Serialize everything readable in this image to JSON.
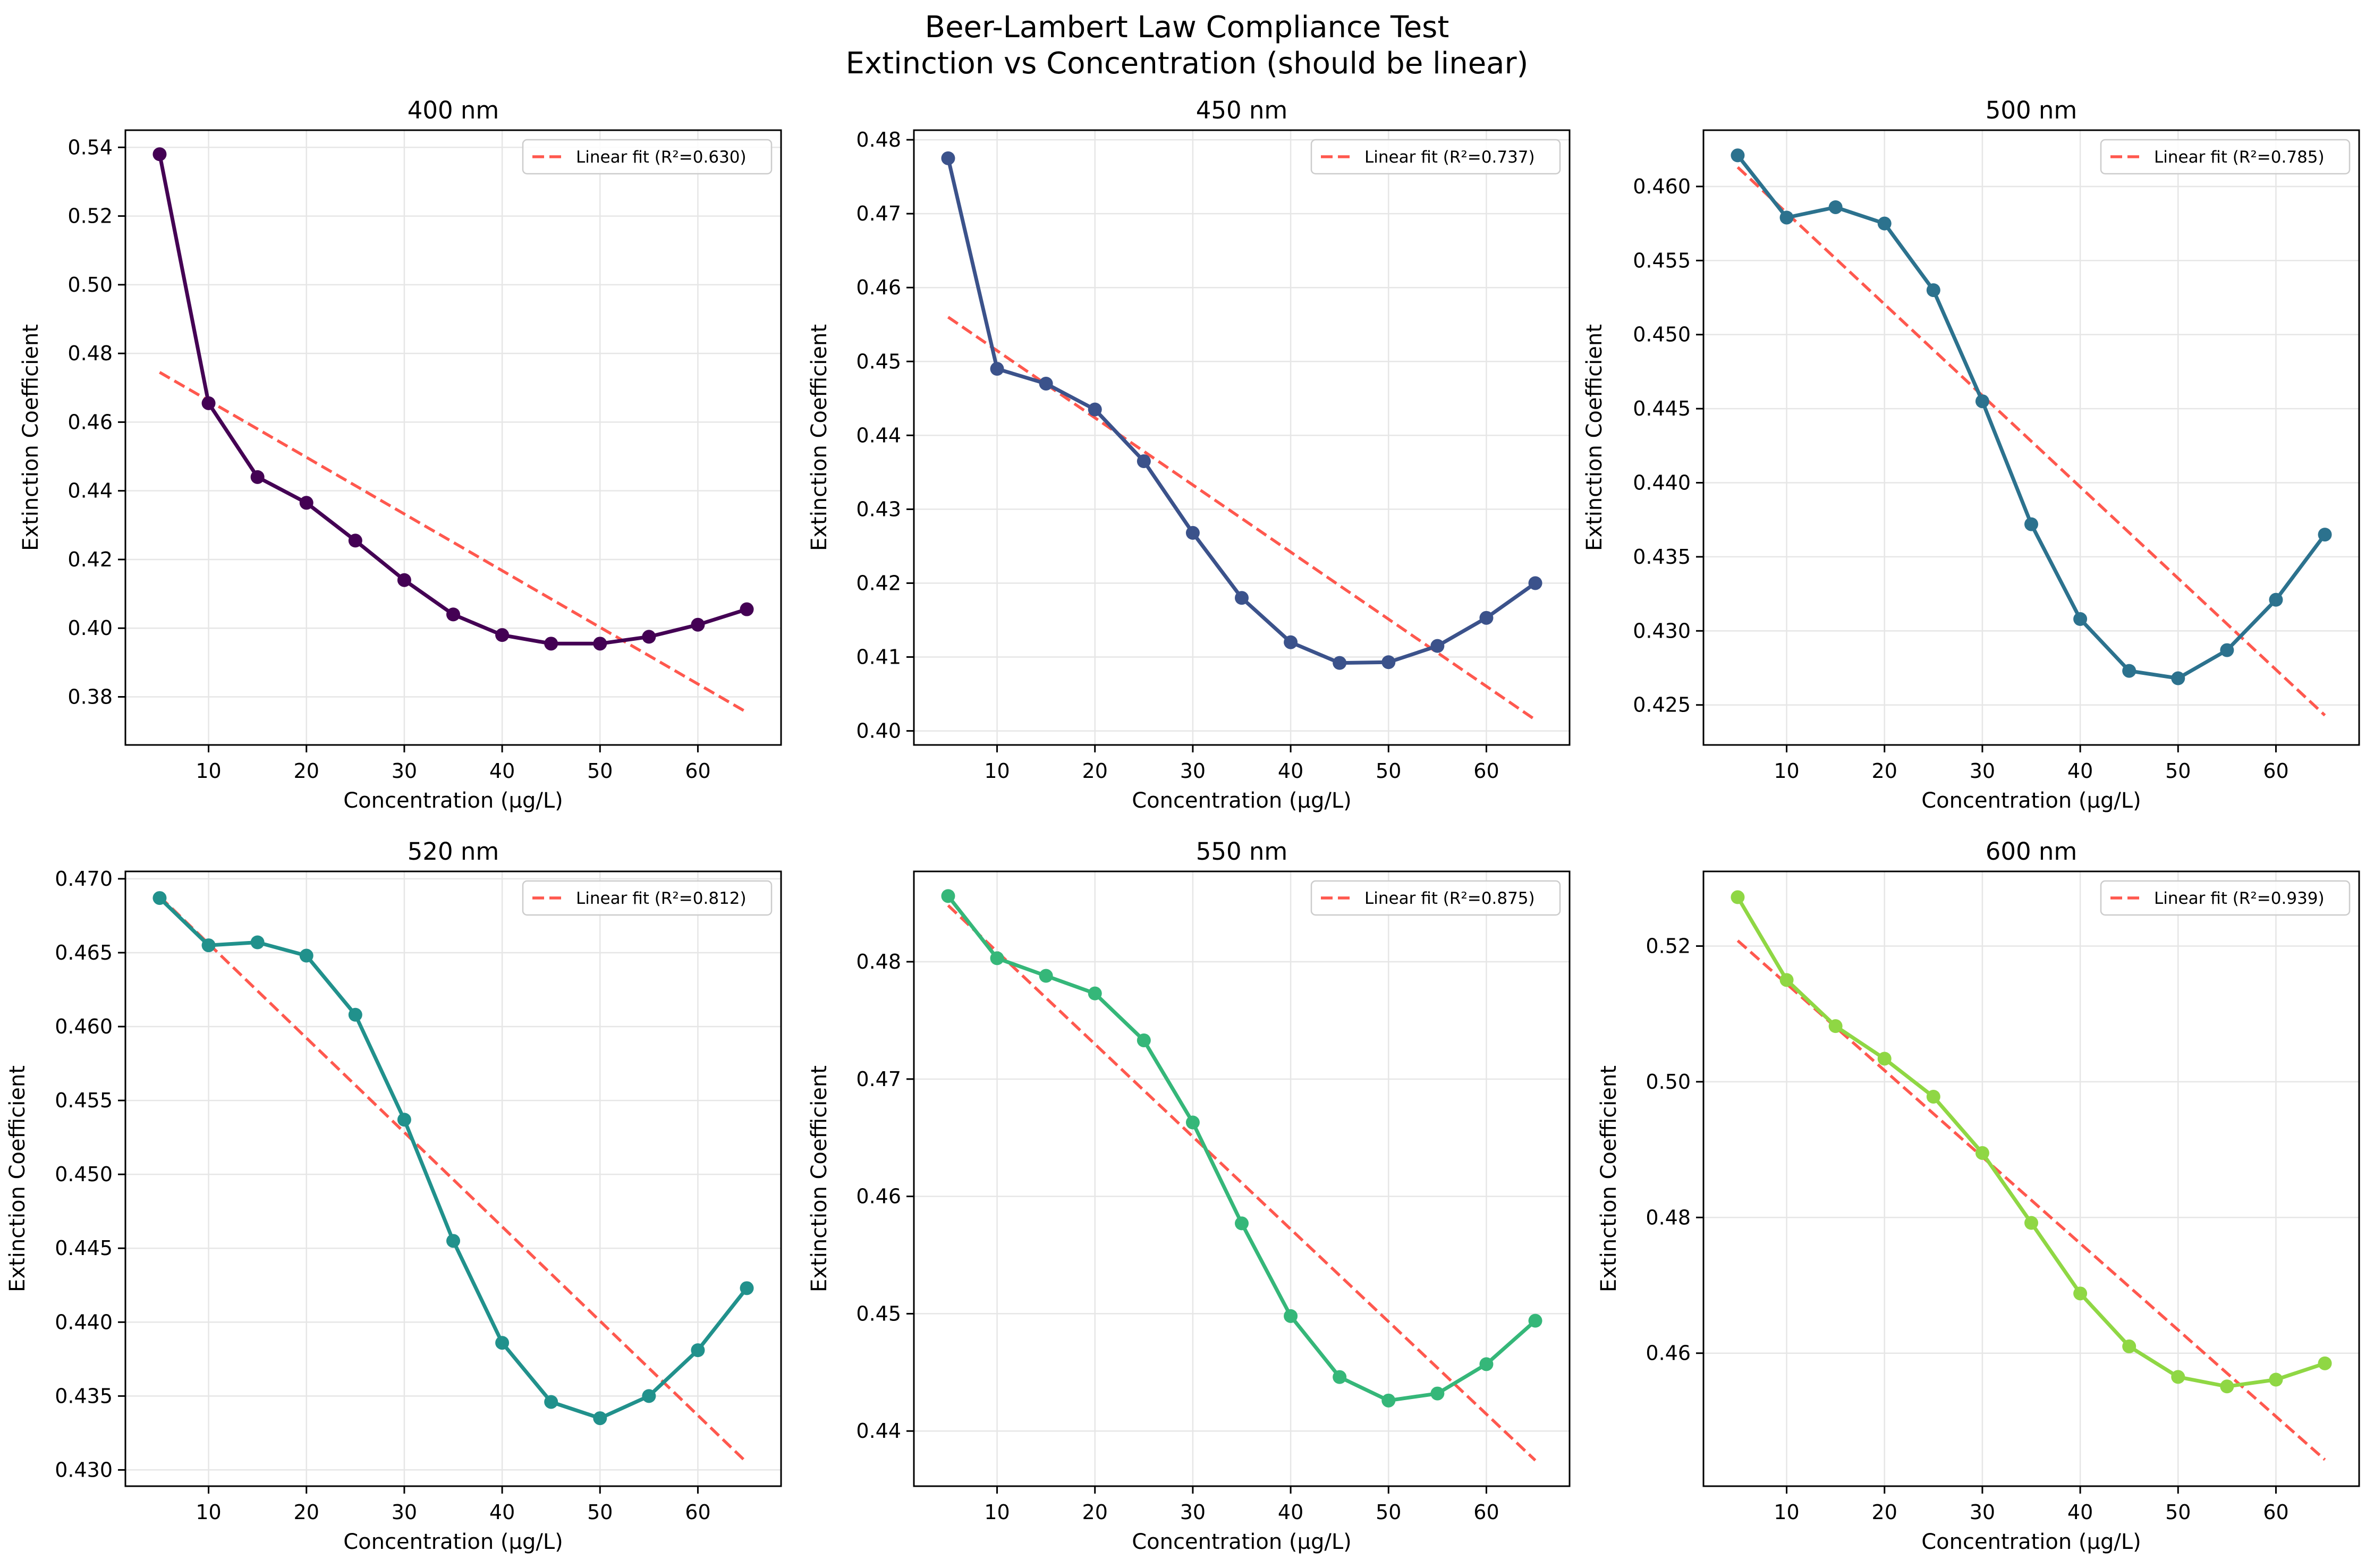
{
  "figure": {
    "title_line1": "Beer-Lambert Law Compliance Test",
    "title_line2": "Extinction vs Concentration (should be linear)"
  },
  "colors": {
    "fit_line": "#ff3b30",
    "grid": "#e6e6e6",
    "axes": "#000000"
  },
  "chart_data": [
    {
      "type": "line",
      "title": "400 nm",
      "xlabel": "Concentration (μg/L)",
      "ylabel": "Extinction Coefficient",
      "color": "#440154",
      "x": [
        5,
        10,
        15,
        20,
        25,
        30,
        35,
        40,
        45,
        50,
        55,
        60,
        65
      ],
      "y": [
        0.538,
        0.4655,
        0.444,
        0.4365,
        0.4255,
        0.414,
        0.404,
        0.398,
        0.3955,
        0.3955,
        0.3975,
        0.401,
        0.4055
      ],
      "fit": {
        "label": "Linear fit (R²=0.630)",
        "y_start": 0.4745,
        "y_end": 0.3755
      },
      "xlim": [
        1.5,
        68.5
      ],
      "ylim": [
        0.366,
        0.545
      ],
      "xticks": [
        10,
        20,
        30,
        40,
        50,
        60
      ],
      "yticks": [
        0.38,
        0.4,
        0.42,
        0.44,
        0.46,
        0.48,
        0.5,
        0.52,
        0.54
      ],
      "ytick_labels": [
        "0.38",
        "0.40",
        "0.42",
        "0.44",
        "0.46",
        "0.48",
        "0.50",
        "0.52",
        "0.54"
      ],
      "legend_position": "upper right",
      "grid": true
    },
    {
      "type": "line",
      "title": "450 nm",
      "xlabel": "Concentration (μg/L)",
      "ylabel": "Extinction Coefficient",
      "color": "#3b528b",
      "x": [
        5,
        10,
        15,
        20,
        25,
        30,
        35,
        40,
        45,
        50,
        55,
        60,
        65
      ],
      "y": [
        0.4775,
        0.449,
        0.447,
        0.4435,
        0.4365,
        0.4268,
        0.418,
        0.412,
        0.4092,
        0.4093,
        0.4115,
        0.4153,
        0.42
      ],
      "fit": {
        "label": "Linear fit (R²=0.737)",
        "y_start": 0.456,
        "y_end": 0.4015
      },
      "xlim": [
        1.5,
        68.5
      ],
      "ylim": [
        0.3981,
        0.4813
      ],
      "xticks": [
        10,
        20,
        30,
        40,
        50,
        60
      ],
      "yticks": [
        0.4,
        0.41,
        0.42,
        0.43,
        0.44,
        0.45,
        0.46,
        0.47,
        0.48
      ],
      "ytick_labels": [
        "0.40",
        "0.41",
        "0.42",
        "0.43",
        "0.44",
        "0.45",
        "0.46",
        "0.47",
        "0.48"
      ],
      "legend_position": "upper right",
      "grid": true
    },
    {
      "type": "line",
      "title": "500 nm",
      "xlabel": "Concentration (μg/L)",
      "ylabel": "Extinction Coefficient",
      "color": "#2c728e",
      "x": [
        5,
        10,
        15,
        20,
        25,
        30,
        35,
        40,
        45,
        50,
        55,
        60,
        65
      ],
      "y": [
        0.4621,
        0.4579,
        0.4586,
        0.4575,
        0.453,
        0.4455,
        0.4372,
        0.4308,
        0.4273,
        0.4268,
        0.4287,
        0.4321,
        0.4365
      ],
      "fit": {
        "label": "Linear fit (R²=0.785)",
        "y_start": 0.4613,
        "y_end": 0.4243
      },
      "xlim": [
        1.5,
        68.5
      ],
      "ylim": [
        0.4223,
        0.4638
      ],
      "xticks": [
        10,
        20,
        30,
        40,
        50,
        60
      ],
      "yticks": [
        0.425,
        0.43,
        0.435,
        0.44,
        0.445,
        0.45,
        0.455,
        0.46
      ],
      "ytick_labels": [
        "0.425",
        "0.430",
        "0.435",
        "0.440",
        "0.445",
        "0.450",
        "0.455",
        "0.460"
      ],
      "legend_position": "upper right",
      "grid": true
    },
    {
      "type": "line",
      "title": "520 nm",
      "xlabel": "Concentration (μg/L)",
      "ylabel": "Extinction Coefficient",
      "color": "#21918c",
      "x": [
        5,
        10,
        15,
        20,
        25,
        30,
        35,
        40,
        45,
        50,
        55,
        60,
        65
      ],
      "y": [
        0.4687,
        0.4655,
        0.4657,
        0.4648,
        0.4608,
        0.4537,
        0.4455,
        0.4386,
        0.4346,
        0.4335,
        0.435,
        0.4381,
        0.4423
      ],
      "fit": {
        "label": "Linear fit (R²=0.812)",
        "y_start": 0.4688,
        "y_end": 0.4305
      },
      "xlim": [
        1.5,
        68.5
      ],
      "ylim": [
        0.4289,
        0.4705
      ],
      "xticks": [
        10,
        20,
        30,
        40,
        50,
        60
      ],
      "yticks": [
        0.43,
        0.435,
        0.44,
        0.445,
        0.45,
        0.455,
        0.46,
        0.465,
        0.47
      ],
      "ytick_labels": [
        "0.430",
        "0.435",
        "0.440",
        "0.445",
        "0.450",
        "0.455",
        "0.460",
        "0.465",
        "0.470"
      ],
      "legend_position": "upper right",
      "grid": true
    },
    {
      "type": "line",
      "title": "550 nm",
      "xlabel": "Concentration (μg/L)",
      "ylabel": "Extinction Coefficient",
      "color": "#35b779",
      "x": [
        5,
        10,
        15,
        20,
        25,
        30,
        35,
        40,
        45,
        50,
        55,
        60,
        65
      ],
      "y": [
        0.4856,
        0.4803,
        0.4788,
        0.4773,
        0.4733,
        0.4663,
        0.4577,
        0.4498,
        0.4446,
        0.4426,
        0.4432,
        0.4457,
        0.4494
      ],
      "fit": {
        "label": "Linear fit (R²=0.875)",
        "y_start": 0.4848,
        "y_end": 0.4375
      },
      "xlim": [
        1.5,
        68.5
      ],
      "ylim": [
        0.4353,
        0.4877
      ],
      "xticks": [
        10,
        20,
        30,
        40,
        50,
        60
      ],
      "yticks": [
        0.44,
        0.45,
        0.46,
        0.47,
        0.48
      ],
      "ytick_labels": [
        "0.44",
        "0.45",
        "0.46",
        "0.47",
        "0.48"
      ],
      "legend_position": "upper right",
      "grid": true
    },
    {
      "type": "line",
      "title": "600 nm",
      "xlabel": "Concentration (μg/L)",
      "ylabel": "Extinction Coefficient",
      "color": "#8fd744",
      "x": [
        5,
        10,
        15,
        20,
        25,
        30,
        35,
        40,
        45,
        50,
        55,
        60,
        65
      ],
      "y": [
        0.5272,
        0.515,
        0.5082,
        0.5034,
        0.4978,
        0.4895,
        0.4792,
        0.4688,
        0.461,
        0.4565,
        0.4551,
        0.4561,
        0.4585
      ],
      "fit": {
        "label": "Linear fit (R²=0.939)",
        "y_start": 0.5208,
        "y_end": 0.4443
      },
      "xlim": [
        1.5,
        68.5
      ],
      "ylim": [
        0.4404,
        0.531
      ],
      "xticks": [
        10,
        20,
        30,
        40,
        50,
        60
      ],
      "yticks": [
        0.46,
        0.48,
        0.5,
        0.52
      ],
      "ytick_labels": [
        "0.46",
        "0.48",
        "0.50",
        "0.52"
      ],
      "legend_position": "upper right",
      "grid": true
    }
  ]
}
